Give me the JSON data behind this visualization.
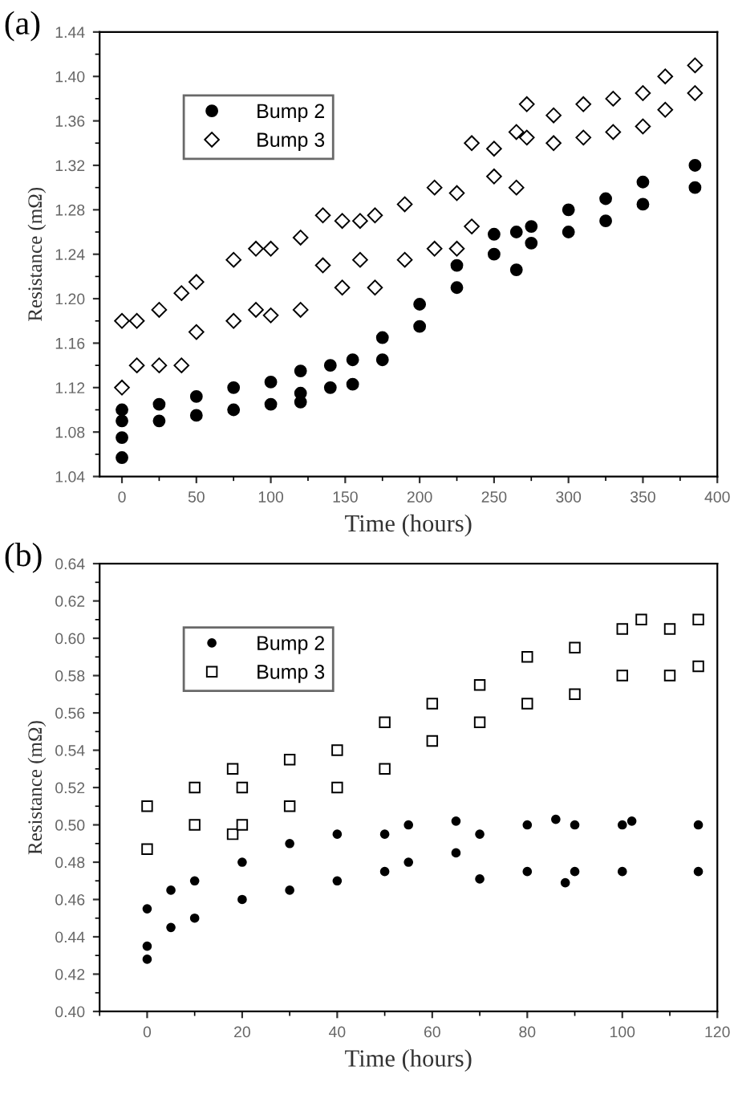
{
  "chart_data": [
    {
      "type": "scatter",
      "title": "(a)",
      "xlabel": "Time (hours)",
      "ylabel": "Resistance (mΩ)",
      "legend": "top left",
      "grid": false,
      "xlim": [
        -15,
        400
      ],
      "ylim": [
        1.04,
        1.44
      ],
      "xticks": [
        0,
        50,
        100,
        150,
        200,
        250,
        300,
        350,
        400
      ],
      "yticks": [
        {
          "value": 1.04,
          "label": "1.04"
        },
        {
          "value": 1.08,
          "label": "1.08"
        },
        {
          "value": 1.12,
          "label": "1.12"
        },
        {
          "value": 1.16,
          "label": "1.16"
        },
        {
          "value": 1.2,
          "label": "1.20"
        },
        {
          "value": 1.24,
          "label": "1.24"
        },
        {
          "value": 1.28,
          "label": "1.28"
        },
        {
          "value": 1.32,
          "label": "1.32"
        },
        {
          "value": 1.36,
          "label": "1.36"
        },
        {
          "value": 1.4,
          "label": "1.40"
        },
        {
          "value": 1.44,
          "label": "1.44"
        }
      ],
      "series": [
        {
          "name": "Bump 2",
          "color": "#000000",
          "marker": "circle",
          "x": [
            0,
            0,
            0,
            0,
            25,
            25,
            50,
            50,
            75,
            75,
            100,
            100,
            120,
            120,
            120,
            140,
            140,
            155,
            155,
            175,
            175,
            200,
            200,
            225,
            225,
            250,
            250,
            265,
            265,
            275,
            275,
            300,
            300,
            325,
            325,
            350,
            350,
            385,
            385
          ],
          "values": [
            1.057,
            1.075,
            1.09,
            1.1,
            1.09,
            1.105,
            1.095,
            1.112,
            1.1,
            1.12,
            1.105,
            1.125,
            1.107,
            1.115,
            1.135,
            1.12,
            1.14,
            1.123,
            1.145,
            1.145,
            1.165,
            1.175,
            1.195,
            1.21,
            1.23,
            1.24,
            1.258,
            1.226,
            1.26,
            1.25,
            1.265,
            1.26,
            1.28,
            1.27,
            1.29,
            1.285,
            1.305,
            1.3,
            1.32
          ]
        },
        {
          "name": "Bump 3",
          "color": "#000000",
          "marker": "diamond",
          "x": [
            0,
            0,
            10,
            10,
            25,
            25,
            40,
            40,
            50,
            50,
            75,
            75,
            90,
            90,
            100,
            100,
            120,
            120,
            135,
            135,
            148,
            148,
            160,
            160,
            170,
            170,
            190,
            190,
            210,
            210,
            225,
            225,
            235,
            235,
            250,
            250,
            265,
            265,
            272,
            272,
            290,
            290,
            310,
            310,
            330,
            330,
            350,
            350,
            365,
            365,
            385,
            385
          ],
          "values": [
            1.18,
            1.12,
            1.18,
            1.14,
            1.19,
            1.14,
            1.205,
            1.14,
            1.215,
            1.17,
            1.235,
            1.18,
            1.245,
            1.19,
            1.245,
            1.185,
            1.255,
            1.19,
            1.275,
            1.23,
            1.27,
            1.21,
            1.27,
            1.235,
            1.275,
            1.21,
            1.285,
            1.235,
            1.3,
            1.245,
            1.295,
            1.245,
            1.34,
            1.265,
            1.335,
            1.31,
            1.35,
            1.3,
            1.375,
            1.345,
            1.365,
            1.34,
            1.375,
            1.345,
            1.38,
            1.35,
            1.385,
            1.355,
            1.4,
            1.37,
            1.41,
            1.385
          ]
        }
      ]
    },
    {
      "type": "scatter",
      "title": "(b)",
      "xlabel": "Time (hours)",
      "ylabel": "Resistance (mΩ)",
      "legend": "top left",
      "grid": false,
      "xlim": [
        -10,
        120
      ],
      "ylim": [
        0.4,
        0.64
      ],
      "xticks": [
        0,
        20,
        40,
        60,
        80,
        100,
        120
      ],
      "yticks": [
        {
          "value": 0.4,
          "label": "0.40"
        },
        {
          "value": 0.42,
          "label": "0.42"
        },
        {
          "value": 0.44,
          "label": "0.44"
        },
        {
          "value": 0.46,
          "label": "0.46"
        },
        {
          "value": 0.48,
          "label": "0.48"
        },
        {
          "value": 0.5,
          "label": "0.50"
        },
        {
          "value": 0.52,
          "label": "0.52"
        },
        {
          "value": 0.54,
          "label": "0.54"
        },
        {
          "value": 0.56,
          "label": "0.56"
        },
        {
          "value": 0.58,
          "label": "0.58"
        },
        {
          "value": 0.6,
          "label": "0.60"
        },
        {
          "value": 0.62,
          "label": "0.62"
        },
        {
          "value": 0.64,
          "label": "0.64"
        }
      ],
      "series": [
        {
          "name": "Bump 2",
          "color": "#000000",
          "marker": "circle",
          "x": [
            0,
            0,
            0,
            5,
            5,
            10,
            10,
            20,
            20,
            30,
            30,
            40,
            40,
            50,
            50,
            55,
            55,
            65,
            65,
            70,
            70,
            80,
            80,
            86,
            88,
            90,
            90,
            100,
            100,
            102,
            116,
            116
          ],
          "values": [
            0.428,
            0.435,
            0.455,
            0.445,
            0.465,
            0.45,
            0.47,
            0.46,
            0.48,
            0.465,
            0.49,
            0.47,
            0.495,
            0.475,
            0.495,
            0.48,
            0.5,
            0.485,
            0.502,
            0.471,
            0.495,
            0.475,
            0.5,
            0.503,
            0.469,
            0.475,
            0.5,
            0.475,
            0.5,
            0.502,
            0.475,
            0.5
          ]
        },
        {
          "name": "Bump 3",
          "color": "#000000",
          "marker": "square",
          "x": [
            0,
            0,
            10,
            10,
            18,
            18,
            20,
            20,
            30,
            30,
            40,
            40,
            50,
            50,
            60,
            60,
            70,
            70,
            80,
            80,
            90,
            90,
            100,
            100,
            104,
            110,
            110,
            116,
            116
          ],
          "values": [
            0.51,
            0.487,
            0.52,
            0.5,
            0.53,
            0.495,
            0.52,
            0.5,
            0.535,
            0.51,
            0.54,
            0.52,
            0.555,
            0.53,
            0.565,
            0.545,
            0.575,
            0.555,
            0.59,
            0.565,
            0.595,
            0.57,
            0.605,
            0.58,
            0.61,
            0.605,
            0.58,
            0.61,
            0.585
          ]
        }
      ]
    }
  ]
}
